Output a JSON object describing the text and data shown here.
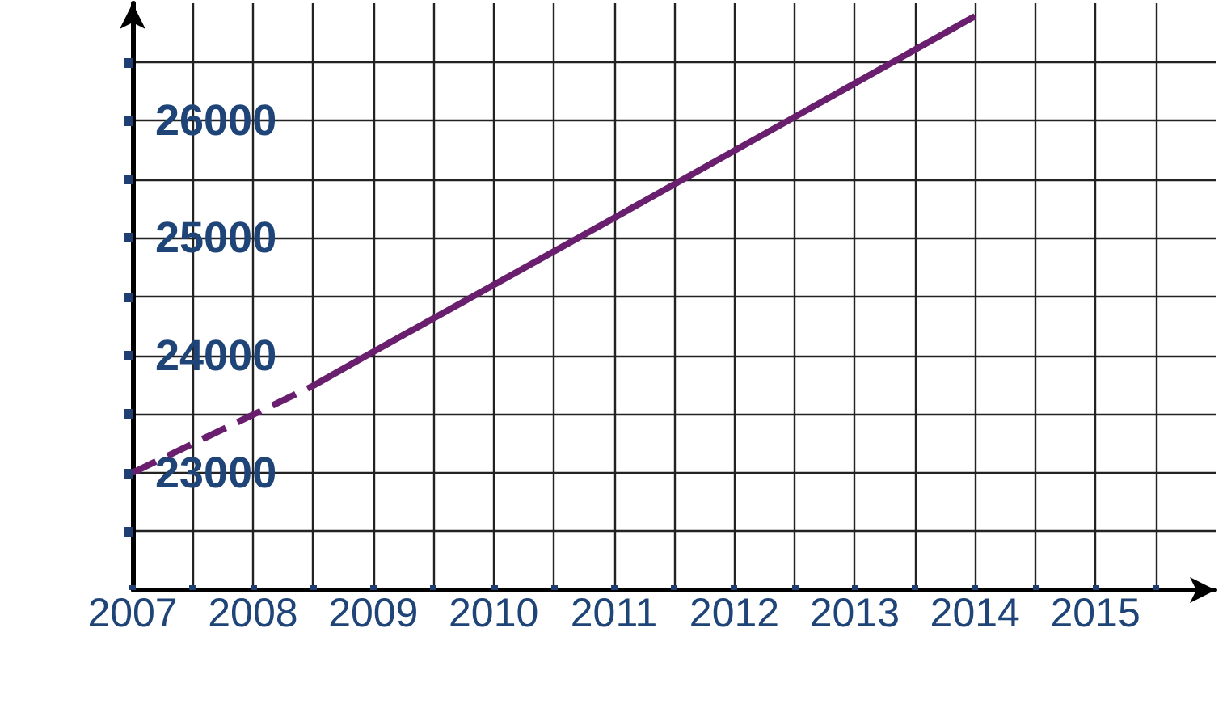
{
  "chart_data": {
    "type": "line",
    "xlim": [
      2007,
      2016
    ],
    "xticks": [
      2007,
      {
        "value": 2007.5,
        "label": null
      },
      2008,
      {
        "value": 2008.5,
        "label": null
      },
      2009,
      {
        "value": 2009.5,
        "label": null
      },
      2010,
      {
        "value": 2010.5,
        "label": null
      },
      2011,
      {
        "value": 2011.5,
        "label": null
      },
      2012,
      {
        "value": 2012.5,
        "label": null
      },
      2013,
      {
        "value": 2013.5,
        "label": null
      },
      2014,
      {
        "value": 2014.5,
        "label": null
      },
      2015,
      {
        "value": 2015.5,
        "label": null
      }
    ],
    "ylim": [
      22000,
      27000
    ],
    "yticks": [
      {
        "value": 22500,
        "label": null
      },
      23000,
      {
        "value": 23500,
        "label": null
      },
      24000,
      {
        "value": 24500,
        "label": null
      },
      25000,
      {
        "value": 25500,
        "label": null
      },
      26000,
      {
        "value": 26500,
        "label": null
      }
    ],
    "series": [
      {
        "color": "#6a1f6e",
        "line_style": "dashed",
        "x": [
          2007,
          2008.5
        ],
        "values": [
          23000,
          23740
        ]
      },
      {
        "color": "#6a1f6e",
        "line_style": "solid",
        "x": [
          2008.5,
          2009,
          2011,
          2014
        ],
        "values": [
          23740,
          24030,
          25170,
          26890
        ]
      }
    ],
    "grid": true,
    "marker": "none"
  }
}
